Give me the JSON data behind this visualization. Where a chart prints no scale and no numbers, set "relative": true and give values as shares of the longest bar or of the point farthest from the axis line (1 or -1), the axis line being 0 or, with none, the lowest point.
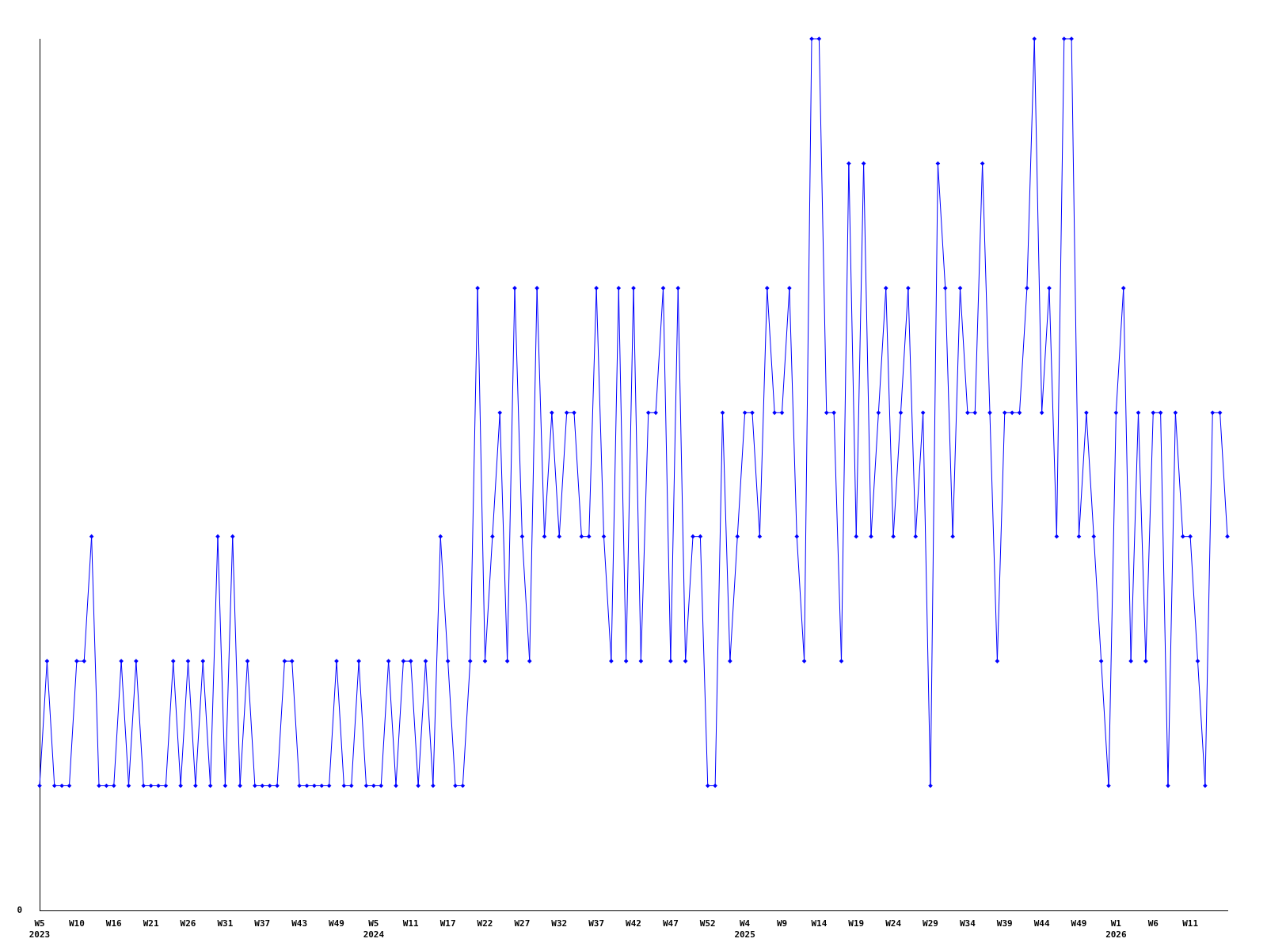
{
  "chart_data": {
    "type": "line",
    "relative": true,
    "marker": "diamond",
    "color": "#0000ff",
    "annotations": [
      "0"
    ],
    "categories": [
      "W5\n2023",
      null,
      null,
      null,
      null,
      "W10",
      null,
      null,
      null,
      null,
      "W16",
      null,
      null,
      null,
      null,
      "W21",
      null,
      null,
      null,
      null,
      "W26",
      null,
      null,
      null,
      null,
      "W31",
      null,
      null,
      null,
      null,
      "W37",
      null,
      null,
      null,
      null,
      "W43",
      null,
      null,
      null,
      null,
      "W49",
      null,
      null,
      null,
      null,
      "W5\n2024",
      null,
      null,
      null,
      null,
      "W11",
      null,
      null,
      null,
      null,
      "W17",
      null,
      null,
      null,
      null,
      "W22",
      null,
      null,
      null,
      null,
      "W27",
      null,
      null,
      null,
      null,
      "W32",
      null,
      null,
      null,
      null,
      "W37",
      null,
      null,
      null,
      null,
      "W42",
      null,
      null,
      null,
      null,
      "W47",
      null,
      null,
      null,
      null,
      "W52",
      null,
      null,
      null,
      null,
      "W4\n2025",
      null,
      null,
      null,
      null,
      "W9",
      null,
      null,
      null,
      null,
      "W14",
      null,
      null,
      null,
      null,
      "W19",
      null,
      null,
      null,
      null,
      "W24",
      null,
      null,
      null,
      null,
      "W29",
      null,
      null,
      null,
      null,
      "W34",
      null,
      null,
      null,
      null,
      "W39",
      null,
      null,
      null,
      null,
      "W44",
      null,
      null,
      null,
      null,
      "W49",
      null,
      null,
      null,
      null,
      "W1\n2026",
      null,
      null,
      null,
      null,
      "W6",
      null,
      null,
      null,
      null,
      "W11",
      null,
      null,
      null,
      null,
      null
    ],
    "values": [
      0.143,
      0.286,
      0.143,
      0.143,
      0.143,
      0.286,
      0.286,
      0.429,
      0.143,
      0.143,
      0.143,
      0.286,
      0.143,
      0.286,
      0.143,
      0.143,
      0.143,
      0.143,
      0.286,
      0.143,
      0.286,
      0.143,
      0.286,
      0.143,
      0.429,
      0.143,
      0.429,
      0.143,
      0.286,
      0.143,
      0.143,
      0.143,
      0.143,
      0.286,
      0.286,
      0.143,
      0.143,
      0.143,
      0.143,
      0.143,
      0.286,
      0.143,
      0.143,
      0.286,
      0.143,
      0.143,
      0.143,
      0.286,
      0.143,
      0.286,
      0.286,
      0.143,
      0.286,
      0.143,
      0.429,
      0.286,
      0.143,
      0.143,
      0.286,
      0.714,
      0.286,
      0.429,
      0.571,
      0.286,
      0.714,
      0.429,
      0.286,
      0.714,
      0.429,
      0.571,
      0.429,
      0.571,
      0.571,
      0.429,
      0.429,
      0.714,
      0.429,
      0.286,
      0.714,
      0.286,
      0.714,
      0.286,
      0.571,
      0.571,
      0.714,
      0.286,
      0.714,
      0.286,
      0.429,
      0.429,
      0.143,
      0.143,
      0.571,
      0.286,
      0.429,
      0.571,
      0.571,
      0.429,
      0.714,
      0.571,
      0.571,
      0.714,
      0.429,
      0.286,
      1,
      1,
      0.571,
      0.571,
      0.286,
      0.857,
      0.429,
      0.857,
      0.429,
      0.571,
      0.714,
      0.429,
      0.571,
      0.714,
      0.429,
      0.571,
      0.143,
      0.857,
      0.714,
      0.429,
      0.714,
      0.571,
      0.571,
      0.857,
      0.571,
      0.286,
      0.571,
      0.571,
      0.571,
      0.714,
      1,
      0.571,
      0.714,
      0.429,
      1,
      1,
      0.429,
      0.571,
      0.429,
      0.286,
      0.143,
      0.571,
      0.714,
      0.286,
      0.571,
      0.286,
      0.571,
      0.571,
      0.143,
      0.571,
      0.429,
      0.429,
      0.286,
      0.143,
      0.571,
      0.571,
      0.429
    ]
  }
}
